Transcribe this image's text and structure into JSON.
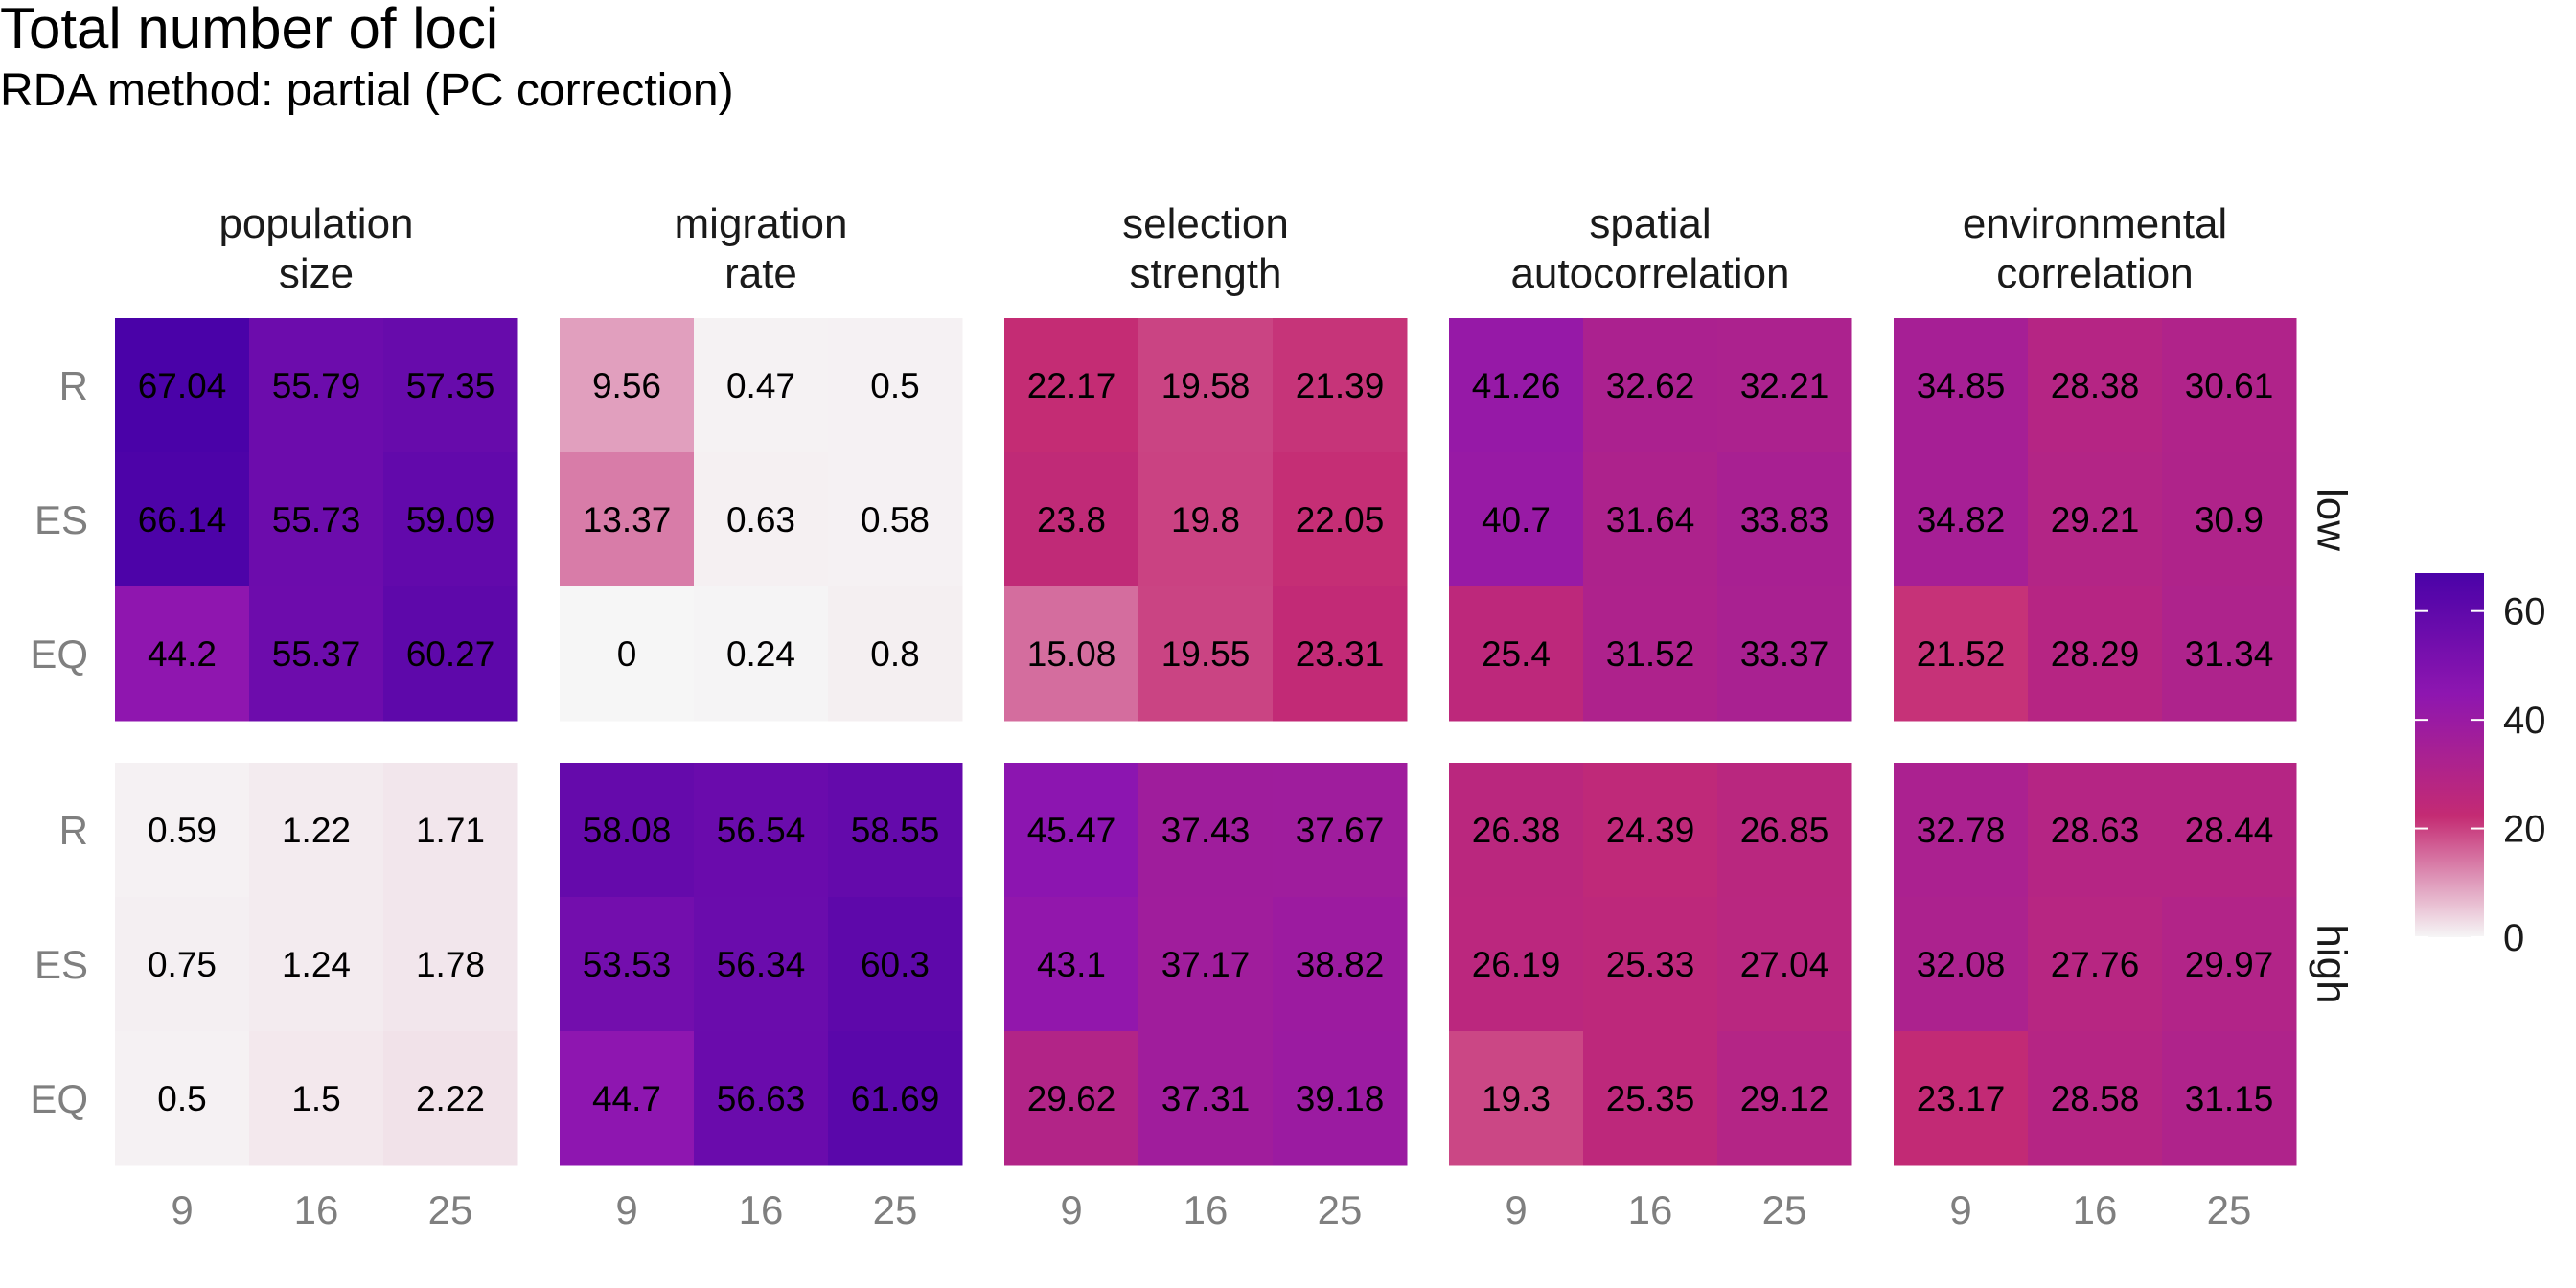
{
  "chart_data": {
    "type": "heatmap",
    "title": "Total number of loci",
    "subtitle": "RDA method: partial (PC correction)",
    "xlabel": "",
    "ylabel": "",
    "x": [
      "9",
      "16",
      "25"
    ],
    "y": [
      "R",
      "ES",
      "EQ"
    ],
    "columns": [
      {
        "id": "population-size",
        "lines": [
          "population",
          "size"
        ]
      },
      {
        "id": "migration-rate",
        "lines": [
          "migration",
          "rate"
        ]
      },
      {
        "id": "selection-strength",
        "lines": [
          "selection",
          "strength"
        ]
      },
      {
        "id": "spatial-autocorrelation",
        "lines": [
          "spatial",
          "autocorrelation"
        ]
      },
      {
        "id": "environmental-correlation",
        "lines": [
          "environmental",
          "correlation"
        ]
      }
    ],
    "rows": [
      "low",
      "high"
    ],
    "panels": [
      [
        [
          [
            67.04,
            55.79,
            57.35
          ],
          [
            66.14,
            55.73,
            59.09
          ],
          [
            44.2,
            55.37,
            60.27
          ]
        ],
        [
          [
            9.56,
            0.47,
            0.5
          ],
          [
            13.37,
            0.63,
            0.58
          ],
          [
            0,
            0.24,
            0.8
          ]
        ],
        [
          [
            22.17,
            19.58,
            21.39
          ],
          [
            23.8,
            19.8,
            22.05
          ],
          [
            15.08,
            19.55,
            23.31
          ]
        ],
        [
          [
            41.26,
            32.62,
            32.21
          ],
          [
            40.7,
            31.64,
            33.83
          ],
          [
            25.4,
            31.52,
            33.37
          ]
        ],
        [
          [
            34.85,
            28.38,
            30.61
          ],
          [
            34.82,
            29.21,
            30.9
          ],
          [
            21.52,
            28.29,
            31.34
          ]
        ]
      ],
      [
        [
          [
            0.59,
            1.22,
            1.71
          ],
          [
            0.75,
            1.24,
            1.78
          ],
          [
            0.5,
            1.5,
            2.22
          ]
        ],
        [
          [
            58.08,
            56.54,
            58.55
          ],
          [
            53.53,
            56.34,
            60.3
          ],
          [
            44.7,
            56.63,
            61.69
          ]
        ],
        [
          [
            45.47,
            37.43,
            37.67
          ],
          [
            43.1,
            37.17,
            38.82
          ],
          [
            29.62,
            37.31,
            39.18
          ]
        ],
        [
          [
            26.38,
            24.39,
            26.85
          ],
          [
            26.19,
            25.33,
            27.04
          ],
          [
            19.3,
            25.35,
            29.12
          ]
        ],
        [
          [
            32.78,
            28.63,
            28.44
          ],
          [
            32.08,
            27.76,
            29.97
          ],
          [
            23.17,
            28.58,
            31.15
          ]
        ]
      ]
    ],
    "legend": {
      "position": "right",
      "ticks": [
        0,
        20,
        40,
        60
      ],
      "range": [
        0,
        67
      ],
      "colors": [
        "#f6f6f6",
        "#c42b73",
        "#8e16b0",
        "#4a02a8"
      ]
    },
    "grid": false
  }
}
